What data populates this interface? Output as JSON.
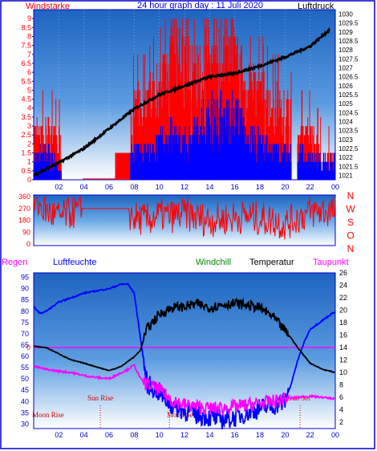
{
  "top_panel": {
    "title": "24 hour graph day : 11 Juli 2020",
    "left_label": "Windstärke",
    "right_label": "Luftdruck"
  },
  "bottom_panel": {
    "legend": {
      "regen": "Regen",
      "luftfeuchte": "Luftfeuchte",
      "windchill": "Windchill",
      "temperatur": "Temperatur",
      "taupunkt": "Taupunkt"
    },
    "events": [
      {
        "label": "Sun Rise",
        "hour": 5.3
      },
      {
        "label": "Moon Rise",
        "hour": 0.0
      },
      {
        "label": "Moon Set",
        "hour": 10.8
      },
      {
        "label": "Sun Set",
        "hour": 21.2
      }
    ]
  },
  "colors": {
    "frame": "#0000cc",
    "plot_top": "#1e64c0",
    "plot_bottom": "#ffffff",
    "wind_max": "#ff0000",
    "wind_avg": "#0000ff",
    "pressure": "#000000",
    "direction": "#ff0000",
    "humidity": "#0000ff",
    "temperature": "#000000",
    "dewpoint": "#ff00ff",
    "rain_line": "#ff00ff",
    "windchill_label": "#008800"
  },
  "chart_data": [
    {
      "type": "bar",
      "title": "24 hour graph day : 11 Juli 2020",
      "ylabel_left": "Windstärke",
      "ylabel_right": "Luftdruck",
      "x_ticks": [
        "02",
        "04",
        "06",
        "08",
        "10",
        "12",
        "14",
        "16",
        "18",
        "20",
        "22",
        "00"
      ],
      "y_left_ticks": [
        "0",
        "0.5",
        "1",
        "1.5",
        "2",
        "2.5",
        "3",
        "3.5",
        "4",
        "4.5",
        "5",
        "5.5",
        "6",
        "6.5",
        "7",
        "7.5",
        "8",
        "8.5",
        "9"
      ],
      "y_right_ticks": [
        "1030",
        "1029.5",
        "1029",
        "1028.5",
        "1028",
        "1027.5",
        "1027",
        "1026.5",
        "1026",
        "1025.5",
        "1025",
        "1024.5",
        "1024",
        "1023.5",
        "1023",
        "1022.5",
        "1022",
        "1021.5",
        "1021"
      ],
      "ylim_left": [
        0,
        9.5
      ],
      "ylim_right": [
        1020.75,
        1030.25
      ],
      "series": [
        {
          "name": "wind_max",
          "hours": [
            0,
            1,
            2,
            3,
            4,
            5,
            6,
            7,
            8,
            9,
            10,
            11,
            12,
            13,
            14,
            15,
            16,
            17,
            18,
            19,
            20,
            21,
            22,
            23
          ],
          "values": [
            3.5,
            3.5,
            3.0,
            1.5,
            0.5,
            0.5,
            0.5,
            1.5,
            5.5,
            5.5,
            7.0,
            9.0,
            9.0,
            8.0,
            9.0,
            9.0,
            9.0,
            6.5,
            6.5,
            5.5,
            5.5,
            3.5,
            3.5,
            1.5
          ]
        },
        {
          "name": "wind_avg",
          "hours": [
            0,
            1,
            2,
            3,
            4,
            5,
            6,
            7,
            8,
            9,
            10,
            11,
            12,
            13,
            14,
            15,
            16,
            17,
            18,
            19,
            20,
            21,
            22,
            23
          ],
          "values": [
            1.0,
            1.5,
            0.5,
            0.0,
            0.0,
            0.0,
            0.0,
            0.0,
            1.5,
            1.5,
            2.0,
            2.5,
            2.0,
            2.5,
            3.5,
            3.5,
            3.5,
            2.0,
            2.0,
            1.5,
            1.5,
            1.5,
            1.0,
            1.0
          ]
        },
        {
          "name": "pressure",
          "hours": [
            0,
            2,
            4,
            6,
            8,
            10,
            12,
            14,
            16,
            18,
            20,
            22,
            23.5
          ],
          "values": [
            1021.0,
            1021.7,
            1022.5,
            1023.6,
            1024.7,
            1025.5,
            1026.0,
            1026.5,
            1026.7,
            1027.1,
            1027.6,
            1028.2,
            1029.1
          ]
        }
      ]
    },
    {
      "type": "line",
      "ylabel_right": "N W S O N",
      "y_ticks": [
        "360",
        "270",
        "180",
        "90",
        "0"
      ],
      "ylim": [
        0,
        360
      ],
      "series": [
        {
          "name": "wind_direction",
          "hours": [
            0,
            1,
            2,
            3,
            4,
            5,
            6,
            7,
            8,
            9,
            10,
            11,
            12,
            13,
            14,
            15,
            16,
            17,
            18,
            19,
            20,
            21,
            22,
            23
          ],
          "values": [
            330,
            250,
            200,
            240,
            250,
            270,
            270,
            270,
            200,
            180,
            220,
            210,
            230,
            200,
            180,
            190,
            200,
            210,
            190,
            180,
            150,
            200,
            240,
            250
          ]
        }
      ]
    },
    {
      "type": "line",
      "y_left_ticks": [
        "95",
        "90",
        "85",
        "80",
        "75",
        "70",
        "65",
        "60",
        "55",
        "50",
        "45",
        "40",
        "35",
        "30"
      ],
      "y_right_ticks": [
        "26",
        "24",
        "22",
        "20",
        "18",
        "16",
        "14",
        "12",
        "10",
        "8",
        "6",
        "4",
        "2"
      ],
      "rain_tick": "0",
      "ylim_left": [
        28,
        97
      ],
      "ylim_right": [
        1,
        26
      ],
      "series": [
        {
          "name": "humidity",
          "hours": [
            0,
            0.5,
            1,
            2,
            3,
            4,
            5,
            6,
            7,
            7.5,
            8,
            8.5,
            9,
            10,
            11,
            12,
            13,
            14,
            15,
            16,
            17,
            18,
            19,
            20,
            20.5,
            21,
            21.5,
            22,
            23,
            24
          ],
          "values": [
            82,
            79,
            80,
            84,
            86,
            88,
            89,
            90,
            92,
            92,
            88,
            68,
            48,
            44,
            38,
            36,
            34,
            33,
            32,
            33,
            35,
            37,
            38,
            40,
            48,
            58,
            66,
            72,
            76,
            80
          ]
        },
        {
          "name": "temperature",
          "hours": [
            0,
            1,
            2,
            3,
            4,
            5,
            6,
            7,
            7.5,
            8,
            8.5,
            9,
            10,
            11,
            12,
            13,
            14,
            15,
            16,
            17,
            18,
            19,
            20,
            20.5,
            21,
            22,
            23,
            24
          ],
          "values": [
            14.2,
            14.0,
            13.0,
            12.0,
            11.5,
            10.9,
            10.3,
            11.0,
            11.8,
            12.5,
            13.6,
            17.0,
            19.3,
            20.4,
            20.6,
            21.0,
            20.4,
            20.9,
            21.1,
            20.8,
            20.4,
            19.0,
            16.7,
            15.5,
            14.0,
            11.5,
            10.5,
            10.0
          ]
        },
        {
          "name": "dewpoint",
          "hours": [
            0,
            1,
            2,
            3,
            4,
            5,
            6,
            7,
            7.5,
            8,
            8.5,
            9,
            10,
            11,
            12,
            13,
            14,
            15,
            16,
            17,
            18,
            19,
            20,
            21,
            22,
            23,
            24
          ],
          "values": [
            11.0,
            10.5,
            10.2,
            10.0,
            9.5,
            9.2,
            9.0,
            10.0,
            10.5,
            11.2,
            9.0,
            8.2,
            7.2,
            5.5,
            4.8,
            4.5,
            4.2,
            4.3,
            4.5,
            4.8,
            5.0,
            5.3,
            5.8,
            6.0,
            6.2,
            6.0,
            5.8
          ]
        },
        {
          "name": "rain",
          "hours": [
            0,
            24
          ],
          "values": [
            0,
            0
          ]
        }
      ]
    }
  ]
}
